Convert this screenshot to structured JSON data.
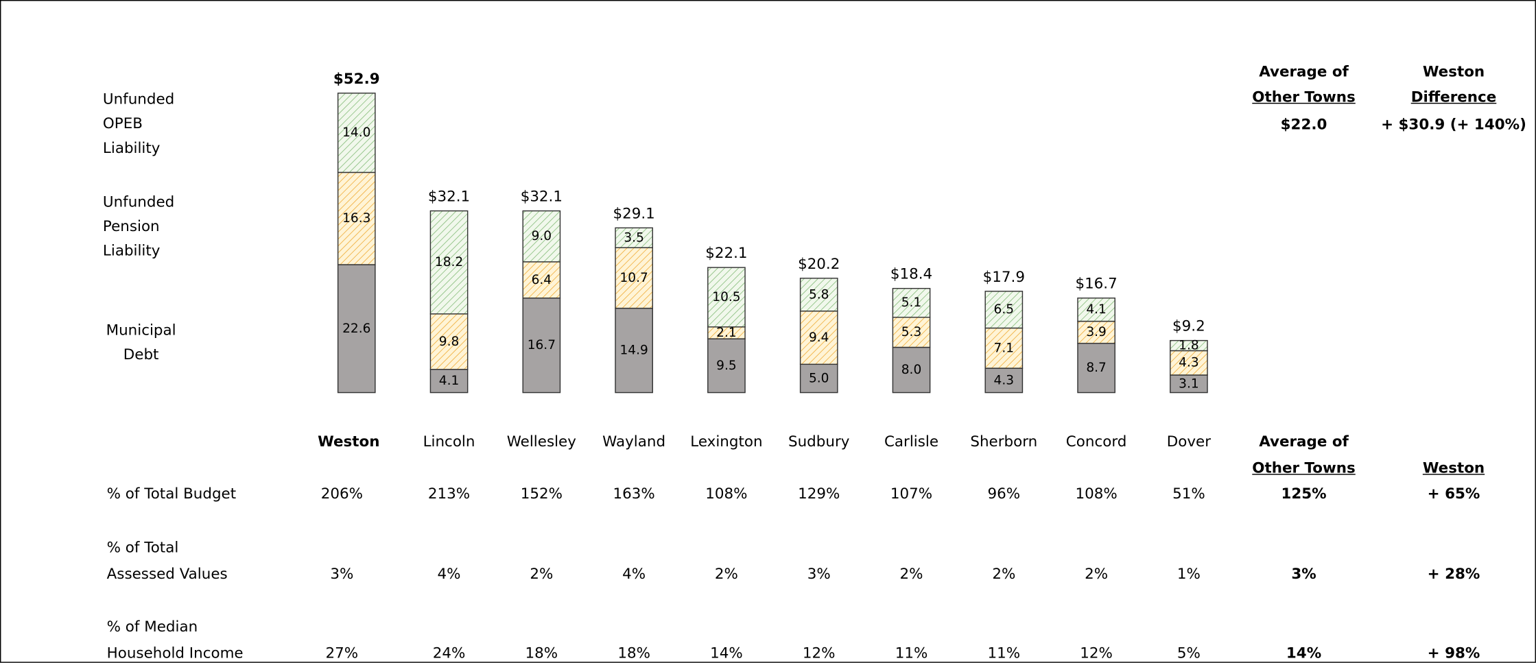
{
  "chart_data": {
    "type": "stacked_bar",
    "categories": [
      "Weston",
      "Lincoln",
      "Wellesley",
      "Wayland",
      "Lexington",
      "Sudbury",
      "Carlisle",
      "Sherborn",
      "Concord",
      "Dover"
    ],
    "highlight_index": 0,
    "series": [
      {
        "name": "Municipal Debt",
        "color": "#a6a3a3",
        "pattern": false,
        "values": [
          22.6,
          4.1,
          16.7,
          14.9,
          9.5,
          5.0,
          8.0,
          4.3,
          8.7,
          3.1
        ],
        "value_labels": [
          "22.6",
          "4.1",
          "16.7",
          "14.9",
          "9.5",
          "5.0",
          "8.0",
          "4.3",
          "8.7",
          "3.1"
        ]
      },
      {
        "name": "Unfunded Pension Liability",
        "color": "#f0b040",
        "pattern": true,
        "values": [
          16.3,
          9.8,
          6.4,
          10.7,
          2.1,
          9.4,
          5.3,
          7.1,
          3.9,
          4.3
        ],
        "value_labels": [
          "16.3",
          "9.8",
          "6.4",
          "10.7",
          "2.1",
          "9.4",
          "5.3",
          "7.1",
          "3.9",
          "4.3"
        ]
      },
      {
        "name": "Unfunded OPEB Liability",
        "color": "#8cc080",
        "pattern": true,
        "values": [
          14.0,
          18.2,
          9.0,
          3.5,
          10.5,
          5.8,
          5.1,
          6.5,
          4.1,
          1.8
        ],
        "value_labels": [
          "14.0",
          "18.2",
          "9.0",
          "3.5",
          "10.5",
          "5.8",
          "5.1",
          "6.5",
          "4.1",
          "1.8"
        ]
      }
    ],
    "totals": [
      52.9,
      32.1,
      32.1,
      29.1,
      22.1,
      20.2,
      18.4,
      17.9,
      16.7,
      9.2
    ],
    "total_labels": [
      "$52.9",
      "$32.1",
      "$32.1",
      "$29.1",
      "$22.1",
      "$20.2",
      "$18.4",
      "$17.9",
      "$16.7",
      "$9.2"
    ],
    "ylim": [
      0,
      55
    ],
    "average": {
      "label": [
        "Average of",
        "Other Towns"
      ],
      "value": 22.0,
      "value_label": "$22.0"
    },
    "difference": {
      "label": [
        "Weston",
        "Difference"
      ],
      "value_label": "+ $30.9 (+ 140%)"
    }
  },
  "table": {
    "average_header": [
      "Average of",
      "Other Towns"
    ],
    "difference_header": "Weston",
    "rows": [
      {
        "label": [
          "% of Total Budget"
        ],
        "values": [
          "206%",
          "213%",
          "152%",
          "163%",
          "108%",
          "129%",
          "107%",
          "96%",
          "108%",
          "51%"
        ],
        "average": "125%",
        "difference": "+ 65%"
      },
      {
        "label": [
          "% of Total",
          "Assessed Values"
        ],
        "values": [
          "3%",
          "4%",
          "2%",
          "4%",
          "2%",
          "3%",
          "2%",
          "2%",
          "2%",
          "1%"
        ],
        "average": "3%",
        "difference": "+ 28%"
      },
      {
        "label": [
          "% of Median",
          "Household Income"
        ],
        "values": [
          "27%",
          "24%",
          "18%",
          "18%",
          "14%",
          "12%",
          "11%",
          "11%",
          "12%",
          "5%"
        ],
        "average": "14%",
        "difference": "+ 98%"
      }
    ]
  }
}
